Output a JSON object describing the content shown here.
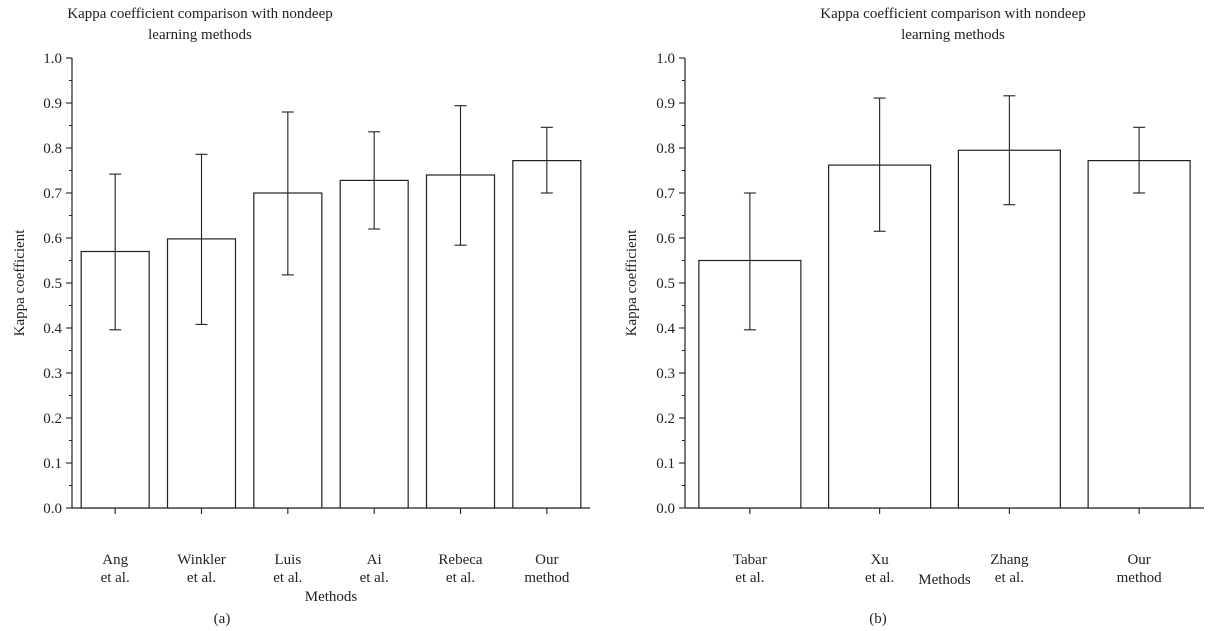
{
  "chart_data": [
    {
      "panel": "(a)",
      "type": "bar",
      "title": [
        "Kappa coefficient comparison with nondeep",
        "learning methods"
      ],
      "xlabel": "Methods",
      "ylabel": "Kappa coefficient",
      "ylim": [
        0,
        1.0
      ],
      "yticks": [
        "0.0",
        "0.1",
        "0.2",
        "0.3",
        "0.4",
        "0.5",
        "0.6",
        "0.7",
        "0.8",
        "0.9",
        "1.0"
      ],
      "categories": [
        [
          "Ang",
          "et al."
        ],
        [
          "Winkler",
          "et al."
        ],
        [
          "Luis",
          "et al."
        ],
        [
          "Ai",
          "et al."
        ],
        [
          "Rebeca",
          "et al."
        ],
        [
          "Our",
          "method"
        ]
      ],
      "values": [
        0.57,
        0.598,
        0.7,
        0.728,
        0.74,
        0.772
      ],
      "error_low": [
        0.396,
        0.408,
        0.518,
        0.62,
        0.584,
        0.7
      ],
      "error_high": [
        0.742,
        0.786,
        0.88,
        0.836,
        0.894,
        0.846
      ],
      "grid": false,
      "legend": "none"
    },
    {
      "panel": "(b)",
      "type": "bar",
      "title": [
        "Kappa coefficient comparison with nondeep",
        "learning methods"
      ],
      "xlabel": "Methods",
      "ylabel": "Kappa coefficient",
      "ylim": [
        0,
        1.0
      ],
      "yticks": [
        "0.0",
        "0.1",
        "0.2",
        "0.3",
        "0.4",
        "0.5",
        "0.6",
        "0.7",
        "0.8",
        "0.9",
        "1.0"
      ],
      "categories": [
        [
          "Tabar",
          "et al."
        ],
        [
          "Xu",
          "et al."
        ],
        [
          "Zhang",
          "et al."
        ],
        [
          "Our",
          "method"
        ]
      ],
      "values": [
        0.55,
        0.762,
        0.795,
        0.772
      ],
      "error_low": [
        0.396,
        0.615,
        0.674,
        0.7
      ],
      "error_high": [
        0.7,
        0.911,
        0.916,
        0.846
      ],
      "grid": false,
      "legend": "none"
    }
  ],
  "colors": {
    "axis": "#231f20",
    "bar_fill": "#ffffff",
    "bar_stroke": "#231f20"
  }
}
